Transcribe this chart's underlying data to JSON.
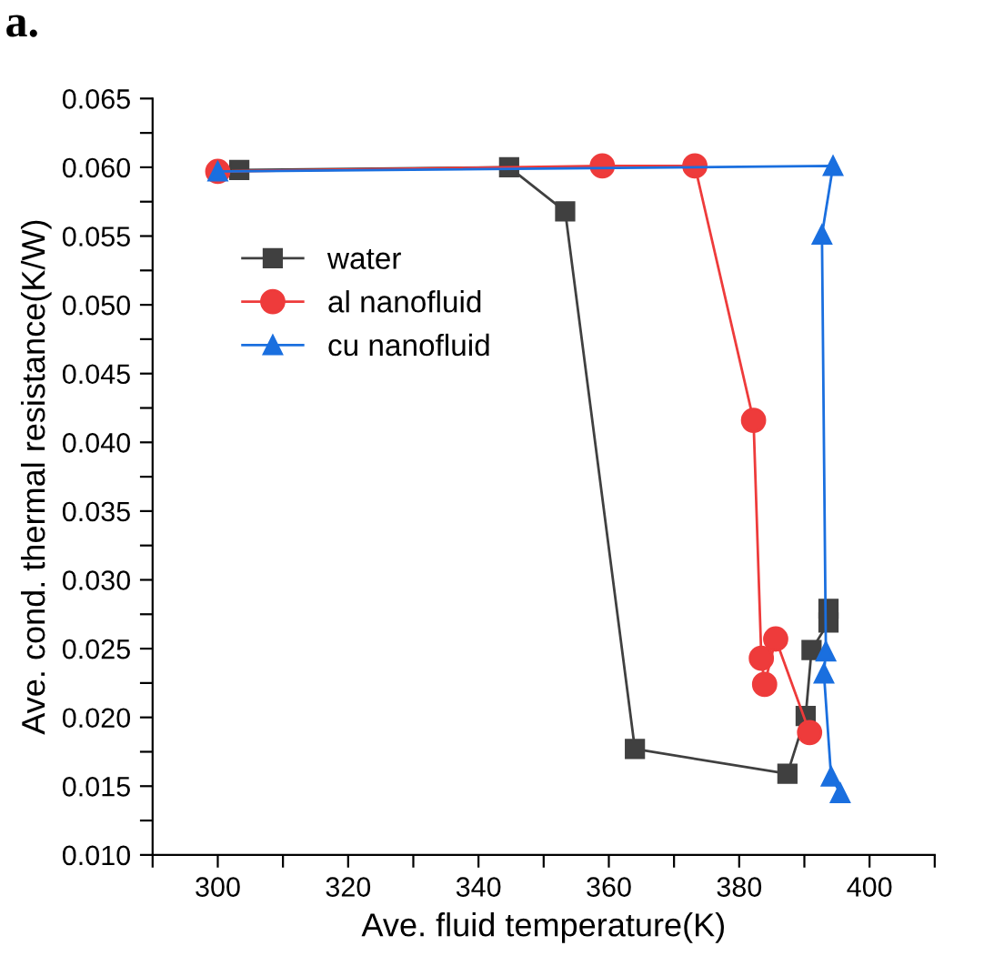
{
  "chart_data": {
    "type": "line",
    "xlabel": "Ave. fluid temperature(K)",
    "ylabel": "Ave. cond. thermal resistance(K/W)",
    "annotations": [
      "a."
    ],
    "xlim": [
      290,
      410
    ],
    "ylim": [
      0.01,
      0.065
    ],
    "xticks": [
      {
        "value": 290,
        "label": null
      },
      300,
      {
        "value": 310,
        "label": null
      },
      320,
      {
        "value": 330,
        "label": null
      },
      340,
      {
        "value": 350,
        "label": null
      },
      360,
      {
        "value": 370,
        "label": null
      },
      380,
      {
        "value": 390,
        "label": null
      },
      400,
      {
        "value": 410,
        "label": null
      }
    ],
    "yticks": [
      {
        "value": 0.01,
        "label": "0.010"
      },
      {
        "value": 0.0125,
        "label": null
      },
      {
        "value": 0.015,
        "label": "0.015"
      },
      {
        "value": 0.0175,
        "label": null
      },
      {
        "value": 0.02,
        "label": "0.020"
      },
      {
        "value": 0.0225,
        "label": null
      },
      {
        "value": 0.025,
        "label": "0.025"
      },
      {
        "value": 0.0275,
        "label": null
      },
      {
        "value": 0.03,
        "label": "0.030"
      },
      {
        "value": 0.0325,
        "label": null
      },
      {
        "value": 0.035,
        "label": "0.035"
      },
      {
        "value": 0.0375,
        "label": null
      },
      {
        "value": 0.04,
        "label": "0.040"
      },
      {
        "value": 0.0425,
        "label": null
      },
      {
        "value": 0.045,
        "label": "0.045"
      },
      {
        "value": 0.0475,
        "label": null
      },
      {
        "value": 0.05,
        "label": "0.050"
      },
      {
        "value": 0.0525,
        "label": null
      },
      {
        "value": 0.055,
        "label": "0.055"
      },
      {
        "value": 0.0575,
        "label": null
      },
      {
        "value": 0.06,
        "label": "0.060"
      },
      {
        "value": 0.0625,
        "label": null
      },
      {
        "value": 0.065,
        "label": "0.065"
      }
    ],
    "grid": false,
    "legend": "upper left",
    "series": [
      {
        "name": "water",
        "color": "#404040",
        "marker": "square",
        "x": [
          303.3,
          344.7,
          353.3,
          364.0,
          387.4,
          390.2,
          391.1,
          393.7,
          393.7
        ],
        "values": [
          0.0598,
          0.06,
          0.0568,
          0.0177,
          0.0159,
          0.0201,
          0.0249,
          0.0269,
          0.0279
        ]
      },
      {
        "name": "al nanofluid",
        "color": "#ee3b3b",
        "marker": "circle",
        "x": [
          300.0,
          359.0,
          373.2,
          382.2,
          383.4,
          383.9,
          385.6,
          390.8
        ],
        "values": [
          0.0597,
          0.0601,
          0.0601,
          0.0416,
          0.0243,
          0.0224,
          0.0257,
          0.0189
        ]
      },
      {
        "name": "cu nanofluid",
        "color": "#1a6fdf",
        "marker": "triangle",
        "x": [
          300.0,
          394.4,
          392.7,
          393.3,
          393.0,
          394.1,
          395.5
        ],
        "values": [
          0.0597,
          0.0601,
          0.0551,
          0.0248,
          0.0232,
          0.0157,
          0.0145
        ]
      }
    ]
  }
}
